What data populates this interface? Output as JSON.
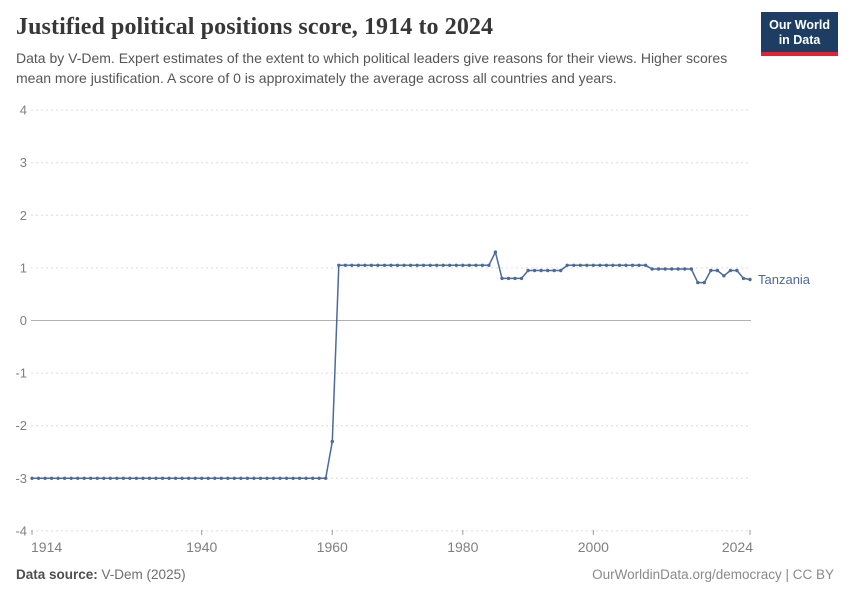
{
  "header": {
    "title": "Justified political positions score, 1914 to 2024",
    "subtitle": "Data by V-Dem. Expert estimates of the extent to which political leaders give reasons for their views. Higher scores mean more justification. A score of 0 is approximately the average across all countries and years.",
    "logo_line1": "Our World",
    "logo_line2": "in Data"
  },
  "footer": {
    "source_label": "Data source:",
    "source_value": "V-Dem (2025)",
    "rights": "OurWorldinData.org/democracy | CC BY"
  },
  "colors": {
    "line": "#4c6a9c",
    "entity_label": "#4c6a9c",
    "grid": "#dcdcdc",
    "zero_line": "#b1b1b1",
    "axis_text": "#808080",
    "tick_mark": "#999999",
    "logo_bg": "#1d3d63",
    "logo_accent": "#e0232e"
  },
  "chart_data": {
    "type": "line",
    "title": "Justified political positions score, 1914 to 2024",
    "entity": "Tanzania",
    "xlim": [
      1914,
      2024
    ],
    "ylim": [
      -4,
      4
    ],
    "x_ticks": [
      1914,
      1940,
      1960,
      1980,
      2000,
      2024
    ],
    "y_ticks": [
      -4,
      -3,
      -2,
      -1,
      0,
      1,
      2,
      3,
      4
    ],
    "grid": "horizontal-dashed",
    "legend_position": "end-of-line-label",
    "series": [
      {
        "name": "Tanzania",
        "x": [
          1914,
          1915,
          1916,
          1917,
          1918,
          1919,
          1920,
          1921,
          1922,
          1923,
          1924,
          1925,
          1926,
          1927,
          1928,
          1929,
          1930,
          1931,
          1932,
          1933,
          1934,
          1935,
          1936,
          1937,
          1938,
          1939,
          1940,
          1941,
          1942,
          1943,
          1944,
          1945,
          1946,
          1947,
          1948,
          1949,
          1950,
          1951,
          1952,
          1953,
          1954,
          1955,
          1956,
          1957,
          1958,
          1959,
          1960,
          1961,
          1962,
          1963,
          1964,
          1965,
          1966,
          1967,
          1968,
          1969,
          1970,
          1971,
          1972,
          1973,
          1974,
          1975,
          1976,
          1977,
          1978,
          1979,
          1980,
          1981,
          1982,
          1983,
          1984,
          1985,
          1986,
          1987,
          1988,
          1989,
          1990,
          1991,
          1992,
          1993,
          1994,
          1995,
          1996,
          1997,
          1998,
          1999,
          2000,
          2001,
          2002,
          2003,
          2004,
          2005,
          2006,
          2007,
          2008,
          2009,
          2010,
          2011,
          2012,
          2013,
          2014,
          2015,
          2016,
          2017,
          2018,
          2019,
          2020,
          2021,
          2022,
          2023,
          2024
        ],
        "y": [
          -3,
          -3,
          -3,
          -3,
          -3,
          -3,
          -3,
          -3,
          -3,
          -3,
          -3,
          -3,
          -3,
          -3,
          -3,
          -3,
          -3,
          -3,
          -3,
          -3,
          -3,
          -3,
          -3,
          -3,
          -3,
          -3,
          -3,
          -3,
          -3,
          -3,
          -3,
          -3,
          -3,
          -3,
          -3,
          -3,
          -3,
          -3,
          -3,
          -3,
          -3,
          -3,
          -3,
          -3,
          -3,
          -3,
          -2.3,
          1.05,
          1.05,
          1.05,
          1.05,
          1.05,
          1.05,
          1.05,
          1.05,
          1.05,
          1.05,
          1.05,
          1.05,
          1.05,
          1.05,
          1.05,
          1.05,
          1.05,
          1.05,
          1.05,
          1.05,
          1.05,
          1.05,
          1.05,
          1.05,
          1.3,
          0.8,
          0.8,
          0.8,
          0.8,
          0.95,
          0.95,
          0.95,
          0.95,
          0.95,
          0.95,
          1.05,
          1.05,
          1.05,
          1.05,
          1.05,
          1.05,
          1.05,
          1.05,
          1.05,
          1.05,
          1.05,
          1.05,
          1.05,
          0.98,
          0.98,
          0.98,
          0.98,
          0.98,
          0.98,
          0.98,
          0.72,
          0.72,
          0.95,
          0.95,
          0.85,
          0.95,
          0.95,
          0.8,
          0.78
        ]
      }
    ]
  }
}
